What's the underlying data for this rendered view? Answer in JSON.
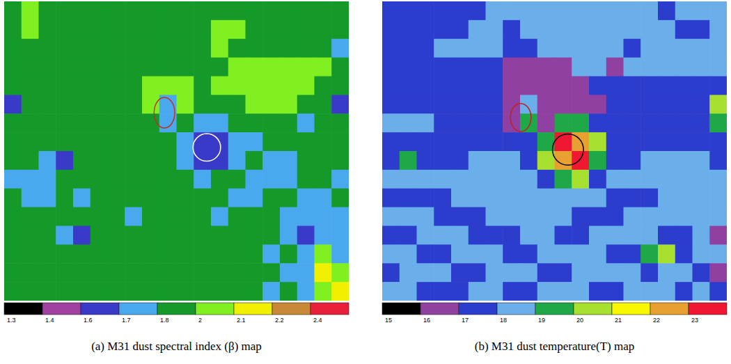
{
  "chart_data": [
    {
      "type": "heatmap",
      "title": "(a) M31 dust spectral index (β) map",
      "colorbar_ticks": [
        1.3,
        1.4,
        1.6,
        1.7,
        1.8,
        2,
        2.1,
        2.2,
        2.4
      ],
      "colors": [
        "#000000",
        "#a040a0",
        "#3a3ac8",
        "#4aa8ee",
        "#159a2a",
        "#80f020",
        "#f0f000",
        "#c88838",
        "#e8203c"
      ],
      "cells": [
        [
          1.8,
          2,
          1.8,
          1.8,
          1.8,
          1.8,
          1.8,
          1.8,
          1.8,
          1.8,
          1.8,
          1.8,
          1.8,
          1.8,
          1.8,
          1.8,
          1.8,
          1.8,
          1.8,
          1.8
        ],
        [
          1.8,
          2,
          1.8,
          1.8,
          1.8,
          1.8,
          1.8,
          1.8,
          1.8,
          1.8,
          1.8,
          1.8,
          2,
          2,
          1.8,
          1.8,
          1.8,
          1.8,
          1.8,
          1.8
        ],
        [
          1.8,
          1.8,
          1.8,
          1.8,
          1.8,
          1.8,
          1.8,
          1.8,
          1.8,
          1.8,
          1.8,
          1.8,
          2,
          1.8,
          1.8,
          1.8,
          1.8,
          1.8,
          1.8,
          1.7
        ],
        [
          1.8,
          1.8,
          1.8,
          1.8,
          1.8,
          1.8,
          1.8,
          1.8,
          1.8,
          1.8,
          1.8,
          1.8,
          1.8,
          2,
          2,
          2,
          2,
          2,
          2,
          1.8
        ],
        [
          1.8,
          1.8,
          1.8,
          1.8,
          1.8,
          1.8,
          1.8,
          1.8,
          2,
          2,
          2,
          1.8,
          2,
          2,
          2,
          2,
          2,
          2,
          1.8,
          1.8
        ],
        [
          1.6,
          1.8,
          1.8,
          1.8,
          1.8,
          1.8,
          1.8,
          1.8,
          2,
          1.7,
          2,
          1.8,
          1.8,
          1.8,
          2,
          2,
          2,
          1.8,
          1.8,
          1.6
        ],
        [
          1.8,
          1.8,
          1.8,
          1.8,
          1.8,
          1.8,
          1.8,
          1.8,
          1.8,
          1.7,
          1.8,
          1.7,
          1.7,
          1.8,
          1.8,
          1.8,
          1.8,
          1.7,
          1.8,
          1.8
        ],
        [
          1.8,
          1.8,
          1.8,
          1.8,
          1.8,
          1.8,
          1.8,
          1.8,
          1.8,
          1.8,
          1.7,
          1.6,
          1.6,
          1.7,
          1.7,
          1.8,
          1.8,
          1.8,
          1.8,
          1.8
        ],
        [
          1.8,
          1.8,
          1.7,
          1.6,
          1.8,
          1.8,
          1.8,
          1.8,
          1.8,
          1.8,
          1.7,
          1.6,
          1.6,
          1.7,
          1.8,
          1.7,
          1.7,
          1.8,
          1.8,
          1.8
        ],
        [
          1.7,
          1.7,
          1.7,
          1.8,
          1.8,
          1.8,
          1.8,
          1.8,
          1.8,
          1.8,
          1.8,
          1.7,
          1.8,
          1.8,
          1.7,
          1.7,
          1.7,
          1.8,
          1.8,
          1.7
        ],
        [
          1.8,
          1.7,
          1.7,
          1.8,
          1.7,
          1.8,
          1.8,
          1.8,
          1.8,
          1.8,
          1.8,
          1.8,
          1.8,
          1.7,
          1.7,
          1.8,
          1.8,
          1.7,
          1.7,
          1.8
        ],
        [
          1.8,
          1.8,
          1.8,
          1.8,
          1.8,
          1.8,
          1.8,
          1.7,
          1.8,
          1.8,
          1.8,
          1.8,
          1.7,
          1.8,
          1.8,
          1.8,
          1.7,
          1.7,
          1.7,
          1.7
        ],
        [
          1.8,
          1.8,
          1.8,
          1.7,
          1.6,
          1.8,
          1.8,
          1.8,
          1.8,
          1.8,
          1.8,
          1.8,
          1.8,
          1.8,
          1.8,
          1.8,
          1.7,
          1.6,
          1.7,
          1.7
        ],
        [
          1.8,
          1.8,
          1.8,
          1.8,
          1.8,
          1.8,
          1.8,
          1.8,
          1.8,
          1.8,
          1.8,
          1.8,
          1.8,
          1.8,
          1.8,
          1.7,
          1.8,
          1.7,
          2,
          1.7
        ],
        [
          1.8,
          1.8,
          1.8,
          1.8,
          1.8,
          1.8,
          1.8,
          1.8,
          1.8,
          1.8,
          1.8,
          1.8,
          1.8,
          1.8,
          1.8,
          1.8,
          1.7,
          1.7,
          2.1,
          2
        ],
        [
          1.8,
          1.8,
          1.8,
          1.8,
          1.8,
          1.8,
          1.8,
          1.8,
          1.8,
          1.8,
          1.8,
          1.8,
          1.8,
          1.8,
          1.8,
          1.7,
          1.8,
          1.7,
          2,
          2.1
        ]
      ]
    },
    {
      "type": "heatmap",
      "title": "(b) M31 dust temperature(T) map",
      "colorbar_ticks": [
        15,
        16,
        17,
        18,
        19,
        20,
        21,
        22,
        23
      ],
      "colors": [
        "#000000",
        "#9040a0",
        "#2c3ccc",
        "#6aaeea",
        "#1ea848",
        "#a8e030",
        "#f8f800",
        "#e8a030",
        "#f01830"
      ],
      "cells": [
        [
          17,
          17,
          17,
          17,
          17,
          17,
          18,
          18,
          18,
          18,
          18,
          18,
          18,
          18,
          18,
          18,
          17,
          18,
          18,
          18
        ],
        [
          17,
          17,
          17,
          17,
          17,
          18,
          18,
          17,
          18,
          18,
          18,
          18,
          18,
          18,
          18,
          18,
          18,
          17,
          17,
          18
        ],
        [
          17,
          17,
          17,
          18,
          18,
          18,
          18,
          17,
          17,
          18,
          18,
          18,
          18,
          18,
          17,
          18,
          18,
          18,
          18,
          18
        ],
        [
          17,
          17,
          17,
          17,
          17,
          17,
          17,
          16,
          16,
          16,
          16,
          18,
          18,
          16,
          18,
          18,
          18,
          18,
          18,
          18
        ],
        [
          17,
          17,
          17,
          17,
          17,
          17,
          17,
          16,
          16,
          16,
          16,
          16,
          17,
          17,
          17,
          17,
          17,
          17,
          17,
          17
        ],
        [
          17,
          17,
          17,
          17,
          17,
          17,
          17,
          16,
          18,
          16,
          16,
          16,
          16,
          17,
          17,
          17,
          17,
          17,
          17,
          20
        ],
        [
          18,
          18,
          18,
          17,
          17,
          17,
          17,
          16,
          19,
          16,
          19,
          19,
          17,
          17,
          17,
          17,
          17,
          17,
          17,
          19
        ],
        [
          17,
          17,
          17,
          17,
          17,
          17,
          17,
          17,
          17,
          19,
          23,
          22,
          20,
          17,
          17,
          17,
          17,
          17,
          17,
          17
        ],
        [
          17,
          19,
          17,
          17,
          17,
          18,
          18,
          18,
          17,
          20,
          22,
          23,
          19,
          17,
          17,
          18,
          18,
          18,
          18,
          17
        ],
        [
          18,
          18,
          18,
          18,
          18,
          18,
          18,
          18,
          18,
          17,
          19,
          20,
          17,
          18,
          18,
          18,
          18,
          18,
          18,
          18
        ],
        [
          17,
          17,
          17,
          17,
          18,
          18,
          18,
          18,
          18,
          18,
          18,
          18,
          18,
          17,
          17,
          17,
          18,
          18,
          18,
          18
        ],
        [
          18,
          18,
          18,
          17,
          17,
          17,
          18,
          18,
          18,
          18,
          18,
          17,
          17,
          17,
          18,
          18,
          18,
          18,
          18,
          18
        ],
        [
          17,
          17,
          18,
          18,
          18,
          17,
          17,
          17,
          18,
          18,
          17,
          17,
          18,
          18,
          18,
          18,
          17,
          17,
          18,
          16
        ],
        [
          18,
          18,
          17,
          17,
          18,
          18,
          18,
          17,
          17,
          18,
          18,
          18,
          18,
          17,
          17,
          19,
          20,
          17,
          18,
          18
        ],
        [
          17,
          18,
          18,
          18,
          17,
          17,
          18,
          18,
          18,
          17,
          17,
          18,
          18,
          18,
          18,
          17,
          18,
          18,
          17,
          16
        ],
        [
          18,
          18,
          17,
          17,
          17,
          18,
          18,
          17,
          17,
          18,
          18,
          18,
          17,
          17,
          18,
          18,
          18,
          17,
          18,
          17
        ]
      ]
    }
  ]
}
